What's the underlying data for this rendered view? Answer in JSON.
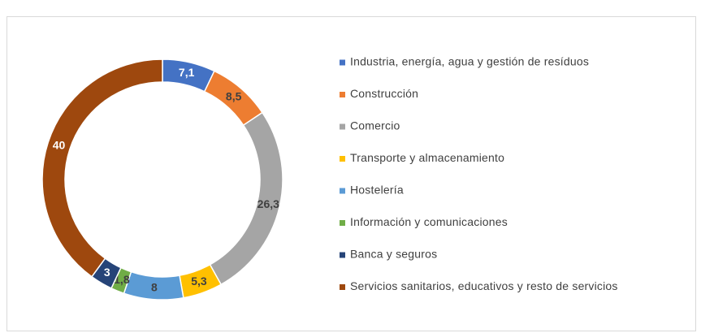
{
  "chart_data": {
    "type": "donut",
    "categories": [
      "Industria, energía, agua y gestión de resíduos",
      "Construcción",
      "Comercio",
      "Transporte y almacenamiento",
      "Hostelería",
      "Información y comunicaciones",
      "Banca y seguros",
      "Servicios sanitarios, educativos y resto de servicios"
    ],
    "values": [
      7.1,
      8.5,
      26.3,
      5.3,
      8,
      1.8,
      3,
      40
    ],
    "value_labels": [
      "7,1",
      "8,5",
      "26,3",
      "5,3",
      "8",
      "1,8",
      "3",
      "40"
    ],
    "colors": [
      "#4472c4",
      "#ed7d31",
      "#a5a5a5",
      "#ffc000",
      "#5b9bd5",
      "#70ad47",
      "#264478",
      "#9e480e"
    ],
    "legend": "right"
  }
}
